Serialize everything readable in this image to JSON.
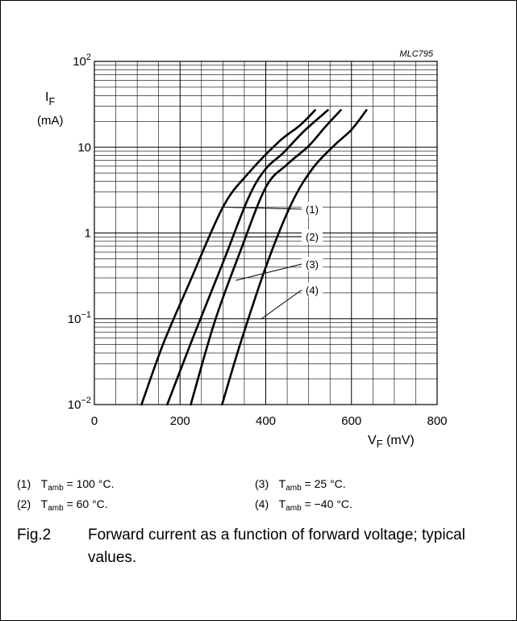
{
  "chart_data": {
    "type": "line",
    "code": "MLC795",
    "ylabel_main": "I",
    "ylabel_sub": "F",
    "yunit": "(mA)",
    "xlabel_main": "V",
    "xlabel_sub": "F",
    "xunit": "(mV)",
    "xlim": [
      0,
      800
    ],
    "ylim": [
      0.01,
      100
    ],
    "yscale": "log",
    "grid": true,
    "x_ticks": [
      "0",
      "200",
      "400",
      "600",
      "800"
    ],
    "x_tick_values": [
      0,
      200,
      400,
      600,
      800
    ],
    "y_ticks": [
      {
        "value": 100,
        "base": "10",
        "exp": "2"
      },
      {
        "value": 10,
        "base": "10",
        "exp": ""
      },
      {
        "value": 1,
        "base": "1",
        "exp": ""
      },
      {
        "value": 0.1,
        "base": "10",
        "exp": "−1"
      },
      {
        "value": 0.01,
        "base": "10",
        "exp": "−2"
      }
    ],
    "series": [
      {
        "name": "(1)",
        "x": [
          110,
          160,
          220,
          300,
          360,
          430,
          480,
          515
        ],
        "y": [
          0.01,
          0.05,
          0.25,
          2,
          5,
          11.5,
          18,
          27
        ]
      },
      {
        "name": "(2)",
        "x": [
          170,
          230,
          300,
          360,
          400,
          440,
          490,
          545
        ],
        "y": [
          0.01,
          0.06,
          0.45,
          2.6,
          5.6,
          8.5,
          15.5,
          27
        ]
      },
      {
        "name": "(3)",
        "x": [
          225,
          280,
          340,
          400,
          450,
          500,
          540,
          575
        ],
        "y": [
          0.01,
          0.09,
          0.6,
          3.4,
          6.3,
          10.3,
          17.5,
          27
        ]
      },
      {
        "name": "(4)",
        "x": [
          298,
          340,
          400,
          460,
          510,
          560,
          600,
          635
        ],
        "y": [
          0.01,
          0.05,
          0.4,
          2.2,
          5.7,
          10.5,
          16,
          27
        ]
      }
    ],
    "callouts": [
      {
        "label": "(1)",
        "x": 300,
        "y": 2
      },
      {
        "label": "(2)",
        "x": 355,
        "y": 0.9
      },
      {
        "label": "(3)",
        "x": 330,
        "y": 0.28
      },
      {
        "label": "(4)",
        "x": 390,
        "y": 0.1
      }
    ]
  },
  "legend": [
    {
      "num": "(1)",
      "pre": "T",
      "sub": "amb",
      "rest": " = 100 °C."
    },
    {
      "num": "(2)",
      "pre": "T",
      "sub": "amb",
      "rest": " = 60 °C."
    },
    {
      "num": "(3)",
      "pre": "T",
      "sub": "amb",
      "rest": " = 25 °C."
    },
    {
      "num": "(4)",
      "pre": "T",
      "sub": "amb",
      "rest": " = −40 °C."
    }
  ],
  "caption": {
    "fig": "Fig.2",
    "text": "Forward current as a function of forward voltage; typical values."
  }
}
